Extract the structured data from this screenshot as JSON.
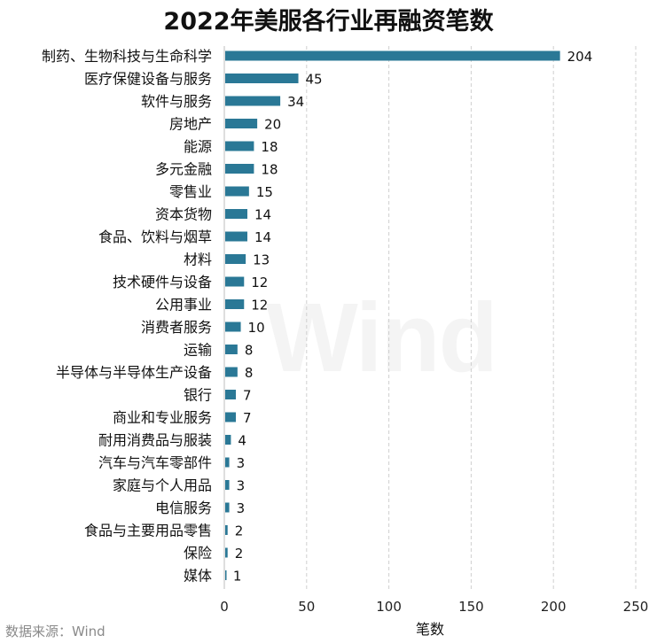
{
  "chart_data": {
    "type": "bar",
    "orientation": "horizontal",
    "title": "2022年美服各行业再融资笔数",
    "xlabel": "笔数",
    "ylabel": "",
    "xlim": [
      0,
      250
    ],
    "xticks": [
      0,
      50,
      100,
      150,
      200,
      250
    ],
    "grid": "vertical dashed",
    "bar_color": "#2a7896",
    "categories": [
      "制药、生物科技与生命科学",
      "医疗保健设备与服务",
      "软件与服务",
      "房地产",
      "能源",
      "多元金融",
      "零售业",
      "资本货物",
      "食品、饮料与烟草",
      "材料",
      "技术硬件与设备",
      "公用事业",
      "消费者服务",
      "运输",
      "半导体与半导体生产设备",
      "银行",
      "商业和专业服务",
      "耐用消费品与服装",
      "汽车与汽车零部件",
      "家庭与个人用品",
      "电信服务",
      "食品与主要用品零售",
      "保险",
      "媒体"
    ],
    "values": [
      204,
      45,
      34,
      20,
      18,
      18,
      15,
      14,
      14,
      13,
      12,
      12,
      10,
      8,
      8,
      7,
      7,
      4,
      3,
      3,
      3,
      2,
      2,
      1
    ]
  },
  "source": "数据来源：Wind",
  "watermark": "Wind"
}
